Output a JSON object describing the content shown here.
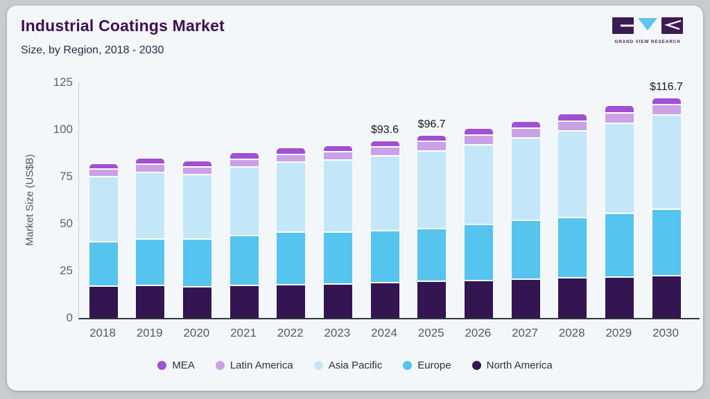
{
  "header": {
    "title": "Industrial Coatings Market",
    "subtitle": "Size, by Region, 2018 - 2030"
  },
  "logo": {
    "text": "GRAND VIEW RESEARCH"
  },
  "chart_data": {
    "type": "bar",
    "stacked": true,
    "title": "Industrial Coatings Market Size, by Region, 2018 - 2030",
    "ylabel": "Market Size (US$B)",
    "ylim": [
      0,
      125
    ],
    "yticks": [
      0,
      25,
      50,
      75,
      100,
      125
    ],
    "grid": false,
    "legend_position": "bottom",
    "categories": [
      "2018",
      "2019",
      "2020",
      "2021",
      "2022",
      "2023",
      "2024",
      "2025",
      "2026",
      "2027",
      "2028",
      "2029",
      "2030"
    ],
    "series": [
      {
        "name": "MEA",
        "color": "#a24fd3",
        "values": [
          3.0,
          3.2,
          3.1,
          3.4,
          3.6,
          3.5,
          3.2,
          3.4,
          3.7,
          3.8,
          3.9,
          4.0,
          4.0
        ]
      },
      {
        "name": "Latin America",
        "color": "#cba1e6",
        "values": [
          4.2,
          4.3,
          4.2,
          4.4,
          4.3,
          4.4,
          4.9,
          5.0,
          5.0,
          5.1,
          5.2,
          5.5,
          5.5
        ]
      },
      {
        "name": "Asia Pacific",
        "color": "#c3e7f8",
        "values": [
          34.6,
          35.5,
          34.3,
          36.1,
          37.0,
          38.2,
          39.4,
          41.1,
          42.4,
          43.9,
          46.0,
          47.9,
          49.8
        ]
      },
      {
        "name": "Europe",
        "color": "#55c4ee",
        "values": [
          23.5,
          24.6,
          25.1,
          26.6,
          27.9,
          27.4,
          27.7,
          28.2,
          29.7,
          31.1,
          32.2,
          33.7,
          35.2
        ]
      },
      {
        "name": "North America",
        "color": "#331552",
        "values": [
          16.5,
          16.9,
          16.3,
          16.9,
          17.3,
          17.8,
          18.4,
          19.0,
          19.6,
          20.3,
          20.8,
          21.4,
          22.2
        ]
      }
    ],
    "annotations": [
      {
        "category": "2024",
        "label": "$93.6"
      },
      {
        "category": "2025",
        "label": "$96.7"
      },
      {
        "category": "2030",
        "label": "$116.7"
      }
    ]
  }
}
